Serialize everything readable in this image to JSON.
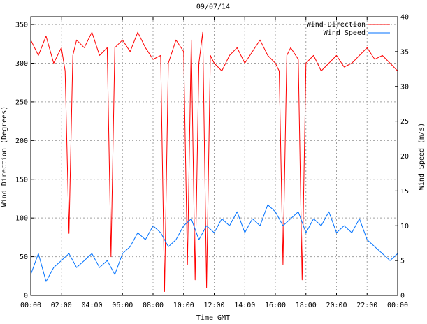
{
  "chart_data": {
    "type": "line",
    "title": "09/07/14",
    "xlabel": "Time GMT",
    "ylabel_left": "Wind Direction (Degrees)",
    "ylabel_right": "Wind Speed (m/s)",
    "x_ticks": [
      "00:00",
      "02:00",
      "04:00",
      "06:00",
      "08:00",
      "10:00",
      "12:00",
      "14:00",
      "16:00",
      "18:00",
      "20:00",
      "22:00",
      "00:00"
    ],
    "y_left_ticks": [
      0,
      50,
      100,
      150,
      200,
      250,
      300,
      350
    ],
    "y_right_ticks": [
      0,
      5,
      10,
      15,
      20,
      25,
      30,
      35,
      40
    ],
    "xlim_hours": [
      0,
      24
    ],
    "ylim_left": [
      0,
      360
    ],
    "ylim_right": [
      0,
      40
    ],
    "grid": true,
    "legend_position": "top-right",
    "series": [
      {
        "name": "Wind Direction",
        "axis": "left",
        "color": "#ff0000",
        "x_hours": [
          0,
          0.5,
          1,
          1.5,
          2,
          2.25,
          2.5,
          2.75,
          3,
          3.5,
          4,
          4.5,
          5,
          5.25,
          5.5,
          6,
          6.5,
          7,
          7.5,
          8,
          8.5,
          8.75,
          9,
          9.5,
          10,
          10.25,
          10.5,
          10.75,
          11,
          11.25,
          11.5,
          11.75,
          12,
          12.5,
          13,
          13.5,
          14,
          14.5,
          15,
          15.5,
          16,
          16.25,
          16.5,
          16.75,
          17,
          17.5,
          17.75,
          18,
          18.5,
          19,
          19.5,
          20,
          20.5,
          21,
          21.5,
          22,
          22.5,
          23,
          23.5,
          24
        ],
        "values": [
          330,
          310,
          335,
          300,
          320,
          290,
          80,
          310,
          330,
          320,
          340,
          310,
          320,
          50,
          320,
          330,
          315,
          340,
          320,
          305,
          310,
          5,
          300,
          330,
          315,
          40,
          330,
          20,
          300,
          340,
          10,
          310,
          300,
          290,
          310,
          320,
          300,
          315,
          330,
          310,
          300,
          290,
          40,
          310,
          320,
          305,
          20,
          300,
          310,
          290,
          300,
          310,
          295,
          300,
          310,
          320,
          305,
          310,
          300,
          290
        ]
      },
      {
        "name": "Wind Speed",
        "axis": "right",
        "color": "#0072ff",
        "x_hours": [
          0,
          0.5,
          1,
          1.5,
          2,
          2.5,
          3,
          3.5,
          4,
          4.5,
          5,
          5.5,
          6,
          6.5,
          7,
          7.5,
          8,
          8.5,
          9,
          9.5,
          10,
          10.5,
          11,
          11.5,
          12,
          12.5,
          13,
          13.5,
          14,
          14.5,
          15,
          15.5,
          16,
          16.5,
          17,
          17.5,
          18,
          18.5,
          19,
          19.5,
          20,
          20.5,
          21,
          21.5,
          22,
          22.5,
          23,
          23.5,
          24
        ],
        "values": [
          3,
          6,
          2,
          4,
          5,
          6,
          4,
          5,
          6,
          4,
          5,
          3,
          6,
          7,
          9,
          8,
          10,
          9,
          7,
          8,
          10,
          11,
          8,
          10,
          9,
          11,
          10,
          12,
          9,
          11,
          10,
          13,
          12,
          10,
          11,
          12,
          9,
          11,
          10,
          12,
          9,
          10,
          9,
          11,
          8,
          7,
          6,
          5,
          6
        ]
      }
    ]
  }
}
